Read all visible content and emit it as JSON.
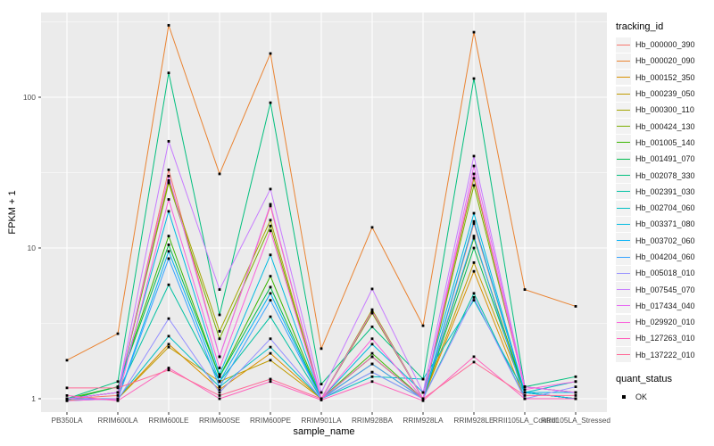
{
  "figure": {
    "x_axis_title": "sample_name",
    "y_axis_title": "FPKM + 1"
  },
  "legend": {
    "tracking_title": "tracking_id",
    "quant_title": "quant_status",
    "quant_items": [
      {
        "label": "OK"
      }
    ]
  },
  "chart_data": {
    "type": "line",
    "title": "",
    "xlabel": "sample_name",
    "ylabel": "FPKM + 1",
    "y_scale": "log10",
    "ylim": [
      0.93,
      430
    ],
    "y_ticks": [
      1,
      10,
      100
    ],
    "y_tick_labels": [
      "1",
      "10",
      "100"
    ],
    "y_minor_gridlines": [
      3.162,
      31.62,
      316.2
    ],
    "grid": "on",
    "panel_background": "#EBEBEB",
    "gridline_color": "#FFFFFF",
    "legend_position": "right",
    "marker": {
      "shape": "square",
      "color": "#000000",
      "legend_label": "OK"
    },
    "categories": [
      "PB350LA",
      "RRIM600LA",
      "RRIM600LE",
      "RRIM600SE",
      "RRIM600PE",
      "RRIM901LA",
      "RRIM928BA",
      "RRIM928LA",
      "RRIM928LE",
      "RRII105LA_Control",
      "RRII105LA_Stressed"
    ],
    "series": [
      {
        "name": "Hb_000000_390",
        "color": "#F8766D",
        "values": [
          1.0,
          1.05,
          33.0,
          1.9,
          19.0,
          1.0,
          3.7,
          1.0,
          14.5,
          1.1,
          1.0
        ]
      },
      {
        "name": "Hb_000020_090",
        "color": "#EA8331",
        "values": [
          1.8,
          2.7,
          300.0,
          31.0,
          195.0,
          2.15,
          13.7,
          3.05,
          270.0,
          5.3,
          4.1
        ]
      },
      {
        "name": "Hb_000152_350",
        "color": "#D89000",
        "values": [
          1.0,
          1.0,
          2.3,
          1.15,
          2.0,
          1.0,
          1.7,
          1.0,
          7.0,
          1.0,
          1.0
        ]
      },
      {
        "name": "Hb_000239_050",
        "color": "#C09B00",
        "values": [
          0.98,
          1.0,
          2.2,
          1.3,
          1.8,
          1.0,
          1.9,
          1.0,
          8.0,
          1.1,
          1.0
        ]
      },
      {
        "name": "Hb_000300_110",
        "color": "#A3A500",
        "values": [
          1.0,
          1.1,
          28.0,
          2.8,
          15.3,
          1.0,
          3.9,
          1.0,
          29.0,
          1.2,
          1.1
        ]
      },
      {
        "name": "Hb_000424_130",
        "color": "#7CAE00",
        "values": [
          1.0,
          1.1,
          27.0,
          2.5,
          14.0,
          1.0,
          3.7,
          1.0,
          26.0,
          1.2,
          1.1
        ]
      },
      {
        "name": "Hb_001005_140",
        "color": "#39B600",
        "values": [
          1.0,
          1.2,
          12.0,
          1.4,
          6.5,
          1.0,
          2.0,
          1.0,
          11.6,
          1.1,
          1.0
        ]
      },
      {
        "name": "Hb_001491_070",
        "color": "#00BB4E",
        "values": [
          0.98,
          1.2,
          10.5,
          1.4,
          5.5,
          1.0,
          1.9,
          1.0,
          10.0,
          1.1,
          1.0
        ]
      },
      {
        "name": "Hb_002078_330",
        "color": "#00BF7D",
        "values": [
          1.0,
          1.3,
          145.0,
          3.6,
          92.0,
          1.25,
          3.0,
          1.35,
          133.0,
          1.2,
          1.4
        ]
      },
      {
        "name": "Hb_002391_030",
        "color": "#00C1A3",
        "values": [
          1.0,
          1.1,
          5.7,
          1.3,
          3.5,
          1.0,
          1.5,
          1.0,
          5.0,
          1.0,
          1.0
        ]
      },
      {
        "name": "Hb_002704_060",
        "color": "#00BFC4",
        "values": [
          1.0,
          1.0,
          2.6,
          1.2,
          2.2,
          1.0,
          1.4,
          1.35,
          4.5,
          1.1,
          1.3
        ]
      },
      {
        "name": "Hb_003371_080",
        "color": "#00BAE0",
        "values": [
          1.0,
          1.1,
          17.5,
          1.45,
          9.0,
          1.0,
          2.3,
          1.1,
          17.0,
          1.1,
          1.1
        ]
      },
      {
        "name": "Hb_003702_060",
        "color": "#00B0F6",
        "values": [
          0.97,
          1.0,
          9.5,
          1.3,
          5.0,
          1.0,
          1.9,
          1.0,
          15.0,
          1.1,
          1.0
        ]
      },
      {
        "name": "Hb_004204_060",
        "color": "#35A2FF",
        "values": [
          1.0,
          1.0,
          8.5,
          1.2,
          4.5,
          1.0,
          1.7,
          1.0,
          12.0,
          1.0,
          1.0
        ]
      },
      {
        "name": "Hb_005018_010",
        "color": "#9590FF",
        "values": [
          1.0,
          0.98,
          3.4,
          1.1,
          2.5,
          1.0,
          1.5,
          1.0,
          4.7,
          1.0,
          1.2
        ]
      },
      {
        "name": "Hb_007545_070",
        "color": "#C77CFF",
        "values": [
          1.0,
          1.1,
          51.0,
          5.3,
          24.6,
          1.1,
          5.35,
          1.1,
          40.7,
          1.2,
          1.1
        ]
      },
      {
        "name": "Hb_017434_040",
        "color": "#E76BF3",
        "values": [
          1.0,
          1.1,
          30.0,
          1.9,
          19.5,
          1.0,
          3.8,
          1.0,
          35.0,
          1.2,
          1.1
        ]
      },
      {
        "name": "Hb_029920_010",
        "color": "#FA62DB",
        "values": [
          0.97,
          1.0,
          21.0,
          1.6,
          13.0,
          1.0,
          2.5,
          1.0,
          31.0,
          1.15,
          1.3
        ]
      },
      {
        "name": "Hb_127263_010",
        "color": "#FF62BC",
        "values": [
          1.05,
          0.97,
          1.6,
          1.0,
          1.3,
          0.98,
          1.3,
          0.97,
          1.9,
          1.0,
          1.0
        ]
      },
      {
        "name": "Hb_137222_010",
        "color": "#FF6A98",
        "values": [
          1.18,
          1.18,
          1.55,
          1.05,
          1.35,
          1.0,
          1.9,
          1.0,
          1.75,
          1.05,
          1.05
        ]
      }
    ]
  }
}
